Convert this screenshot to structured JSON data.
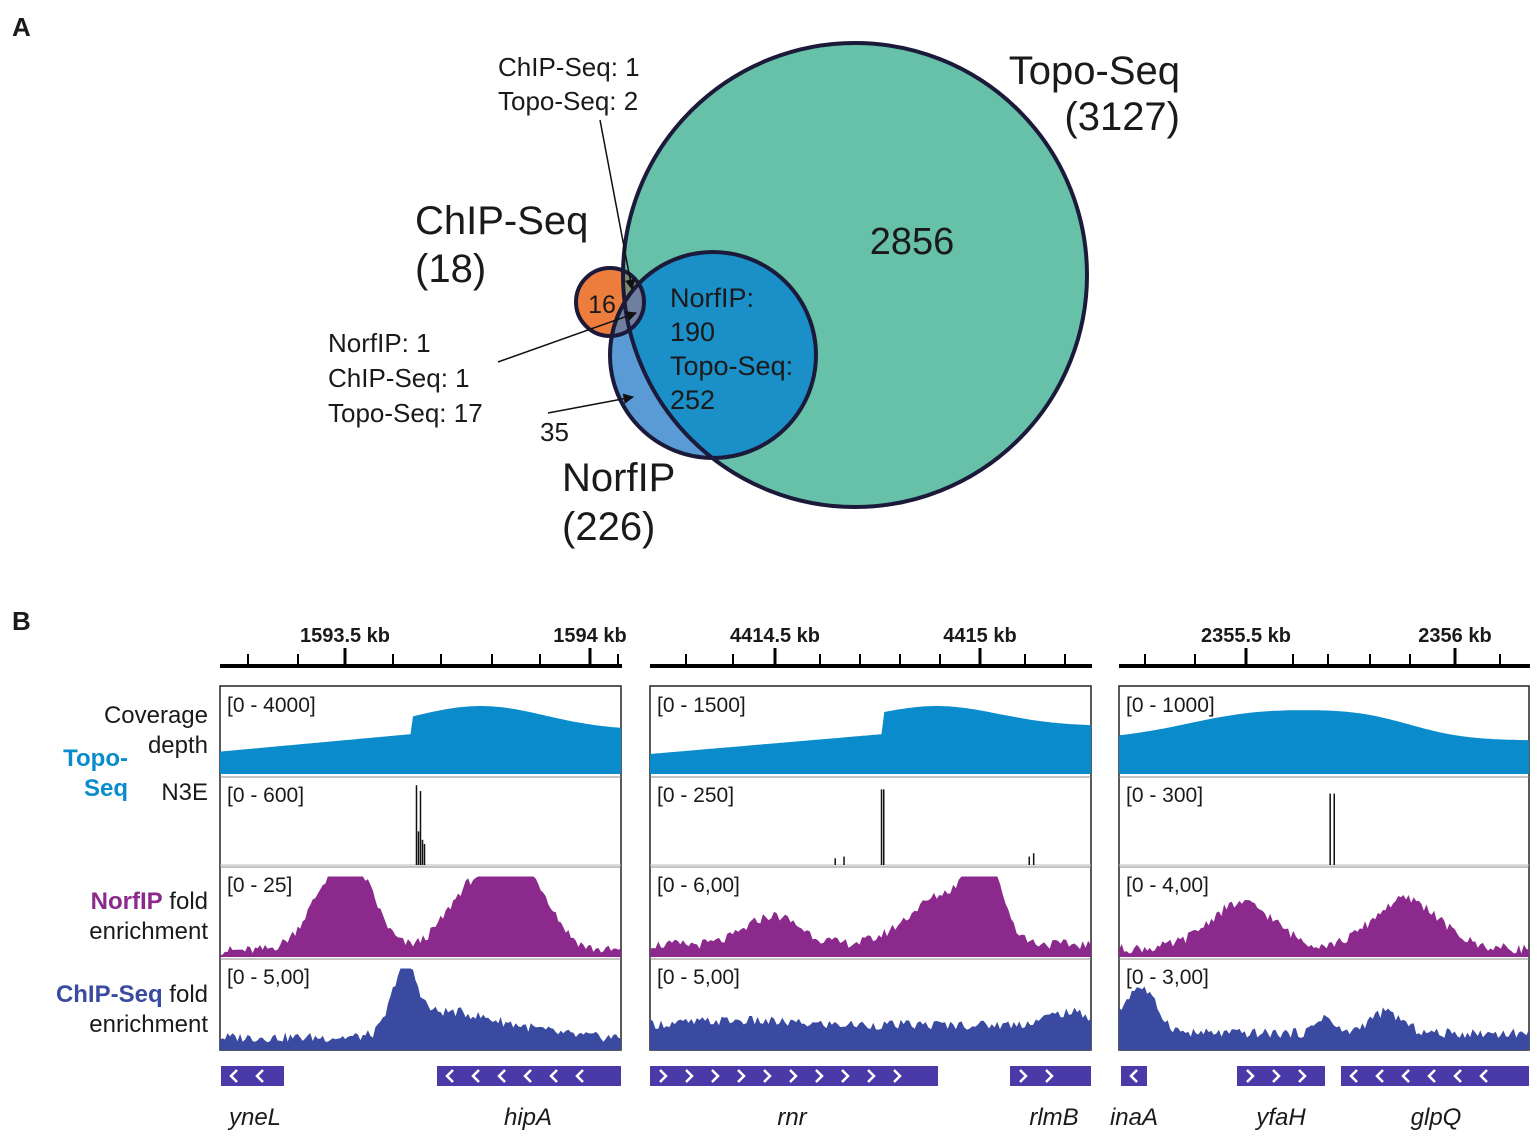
{
  "panel_a": {
    "letter": "A",
    "topo": {
      "title": "Topo-Seq",
      "count": "(3127)",
      "unique": "2856",
      "color": "#67c1a8"
    },
    "chip": {
      "title": "ChIP-Seq",
      "count": "(18)",
      "unique": "16",
      "color": "#ec7d3c"
    },
    "norf": {
      "title": "NorfIP",
      "count": "(226)",
      "color": "#1b8fc7",
      "only_color": "#5b9bd5"
    },
    "overlap_norf_topo": [
      "NorfIP:",
      "190",
      "Topo-Seq:",
      "252"
    ],
    "callout_chip_topo": [
      "ChIP-Seq: 1",
      "Topo-Seq: 2"
    ],
    "callout_triple": [
      "NorfIP: 1",
      "ChIP-Seq: 1",
      "Topo-Seq: 17"
    ],
    "callout_norf_only": "35"
  },
  "panel_b": {
    "letter": "B",
    "row_labels": {
      "coverage": [
        "Coverage",
        "depth"
      ],
      "topo_group": [
        "Topo-",
        "Seq"
      ],
      "n3e": "N3E",
      "norf_colored": "NorfIP",
      "norf_rest": "fold",
      "norf_line2": "enrichment",
      "chip_colored": "ChIP-Seq",
      "chip_rest": "fold",
      "chip_line2": "enrichment"
    },
    "colors": {
      "topo": "#0a8ccc",
      "norf": "#8b2a8c",
      "chip": "#3a4aa0",
      "gene": "#4a3aa8",
      "n3e": "#111111"
    },
    "regions": [
      {
        "ticks": [
          "1593.5 kb",
          "1594 kb"
        ],
        "ranges": [
          "[0 - 4000]",
          "[0 - 600]",
          "[0 - 25]",
          "[0 - 5,00]"
        ],
        "genes": [
          "yneL",
          "hipA"
        ]
      },
      {
        "ticks": [
          "4414.5 kb",
          "4415 kb"
        ],
        "ranges": [
          "[0 - 1500]",
          "[0 - 250]",
          "[0 - 6,00]",
          "[0 - 5,00]"
        ],
        "genes": [
          "rnr",
          "rlmB"
        ]
      },
      {
        "ticks": [
          "2355.5 kb",
          "2356 kb"
        ],
        "ranges": [
          "[0 - 1000]",
          "[0 - 300]",
          "[0 - 4,00]",
          "[0 - 3,00]"
        ],
        "genes": [
          "inaA",
          "yfaH",
          "glpQ"
        ]
      }
    ]
  }
}
